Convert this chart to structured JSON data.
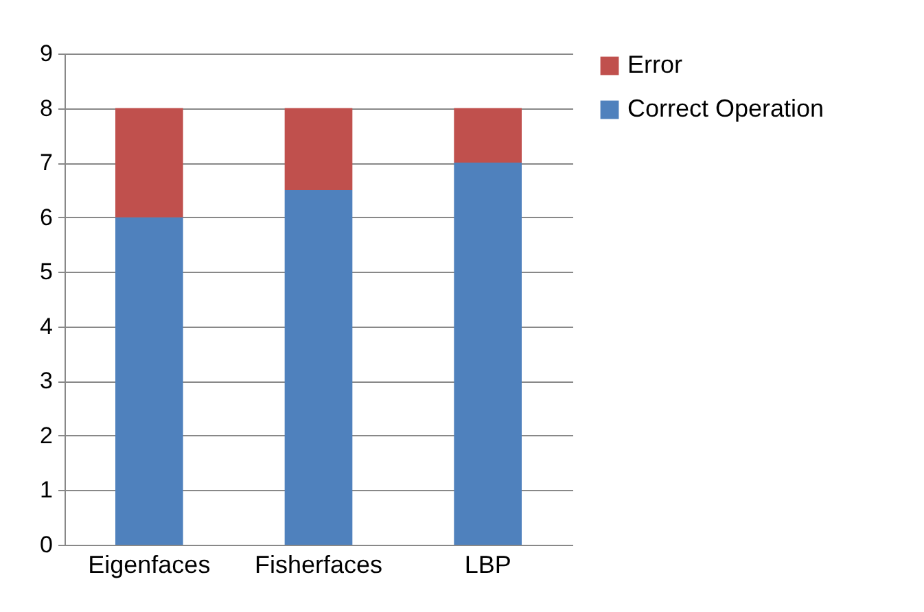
{
  "chart_data": {
    "type": "bar",
    "stacked": true,
    "categories": [
      "Eigenfaces",
      "Fisherfaces",
      "LBP"
    ],
    "series": [
      {
        "name": "Correct Operation",
        "color": "#4f81bd",
        "values": [
          6,
          6.5,
          7
        ]
      },
      {
        "name": "Error",
        "color": "#c0504d",
        "values": [
          2,
          1.5,
          1
        ]
      }
    ],
    "ylim": [
      0,
      9
    ],
    "yticks": [
      0,
      1,
      2,
      3,
      4,
      5,
      6,
      7,
      8,
      9
    ],
    "grid": "y",
    "legend": "right"
  }
}
